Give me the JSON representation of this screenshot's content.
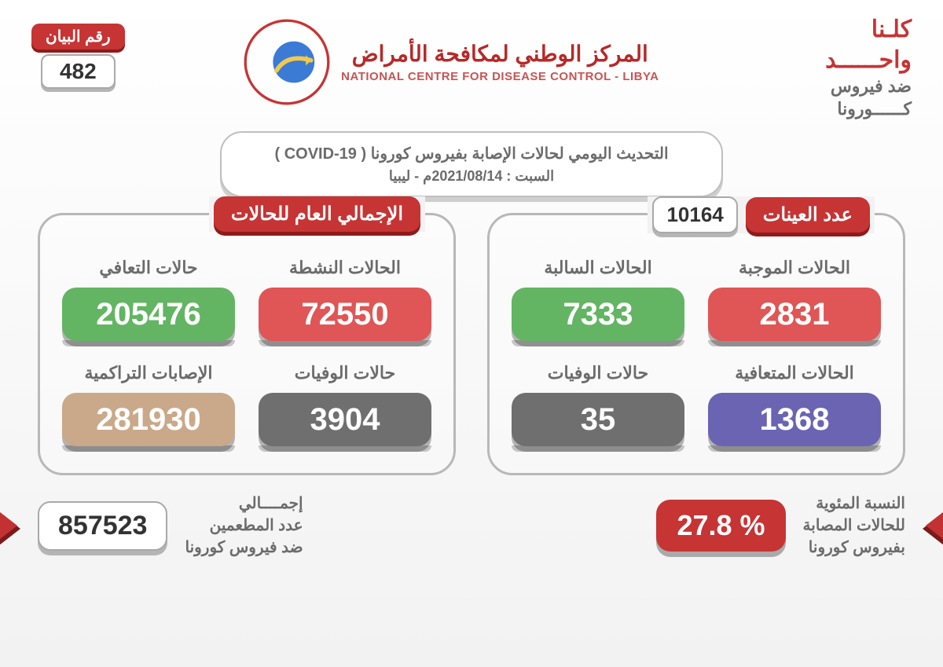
{
  "colors": {
    "red": "#e05555",
    "green": "#63b563",
    "gray": "#6f6f6f",
    "purple": "#6a64b3",
    "tan": "#c9a98a",
    "accent": "#c63434"
  },
  "header": {
    "slogan_red": "كلـنا",
    "slogan_l2": "واحــــــد",
    "slogan_l3": "ضد فيروس",
    "slogan_l4": "كــــــورونا",
    "org_ar": "المركز الوطني لمكافحة الأمراض",
    "org_en": "NATIONAL CENTRE FOR DISEASE CONTROL - LIBYA",
    "bulletin_label": "رقم البيان",
    "bulletin_number": "482"
  },
  "title": {
    "line1": "التحديث اليومي لحالات الإصابة بفيروس كورونا ( COVID-19 )",
    "line2": "السبت : 2021/08/14م - ليبيا"
  },
  "samples_panel": {
    "header_label": "عدد العينات",
    "header_value": "10164",
    "cells": [
      {
        "label": "الحالات الموجبة",
        "value": "2831",
        "colorKey": "red"
      },
      {
        "label": "الحالات السالبة",
        "value": "7333",
        "colorKey": "green"
      },
      {
        "label": "الحالات المتعافية",
        "value": "1368",
        "colorKey": "purple"
      },
      {
        "label": "حالات الوفيات",
        "value": "35",
        "colorKey": "gray"
      }
    ]
  },
  "totals_panel": {
    "header_label": "الإجمالي العام للحالات",
    "cells": [
      {
        "label": "الحالات النشطة",
        "value": "72550",
        "colorKey": "red"
      },
      {
        "label": "حالات التعافي",
        "value": "205476",
        "colorKey": "green"
      },
      {
        "label": "حالات الوفيات",
        "value": "3904",
        "colorKey": "gray"
      },
      {
        "label": "الإصابات التراكمية",
        "value": "281930",
        "colorKey": "tan"
      }
    ]
  },
  "footer": {
    "percent_label": "النسبة المئوية\nللحالات المصابة\nبفيروس كورونا",
    "percent_value": "27.8 %",
    "vacc_label": "إجمــــالي\nعدد المطعمين\nضد فيروس كورونا",
    "vacc_value": "857523"
  }
}
